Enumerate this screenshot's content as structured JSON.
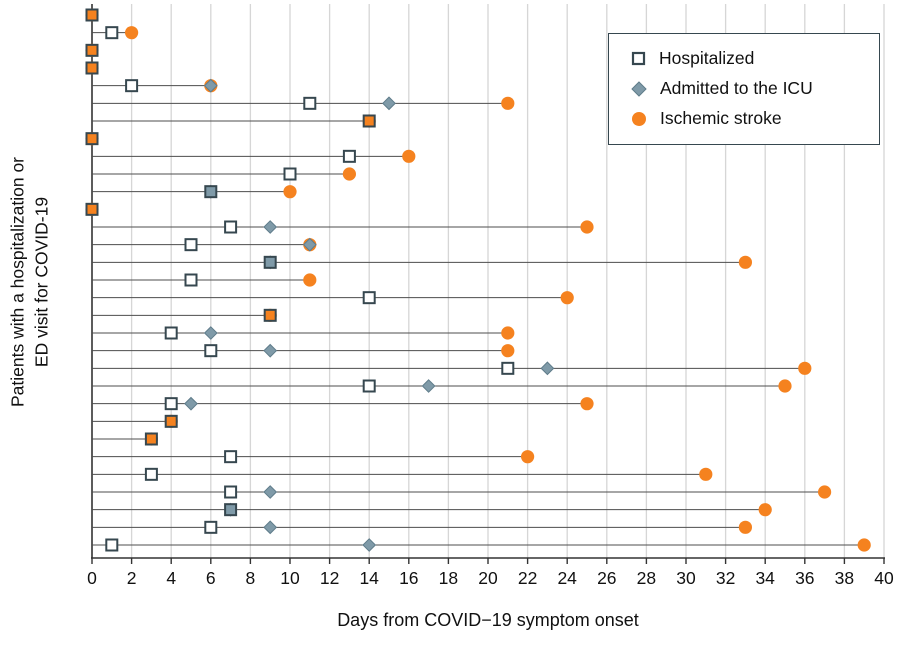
{
  "chart_data": {
    "type": "scatter",
    "subtype": "patient-event-timeline",
    "xlabel": "Days from COVID−19 symptom onset",
    "ylabel_line1": "Patients with a hospitalization or",
    "ylabel_line2": "ED visit for  COVID-19",
    "x_axis": {
      "min": 0,
      "max": 40
    },
    "x_ticks": [
      0,
      2,
      4,
      6,
      8,
      10,
      12,
      14,
      16,
      18,
      20,
      22,
      24,
      26,
      28,
      30,
      32,
      34,
      36,
      38,
      40
    ],
    "grid": "vertical-on",
    "legend_position": "top-right",
    "legend": [
      {
        "label": "Hospitalized",
        "marker": "open-square"
      },
      {
        "label": "Admitted to the ICU",
        "marker": "diamond"
      },
      {
        "label": "Ischemic stroke",
        "marker": "circle"
      }
    ],
    "colors": {
      "square_stroke": "#36474f",
      "icu_fill": "#7f9aa8",
      "icu_stroke": "#5f7c8a",
      "stroke_fill": "#f5821f",
      "line": "#4d4d4d",
      "grid": "#d6d6d6",
      "axis": "#333333",
      "text": "#111111"
    },
    "patients": [
      {
        "hospitalized": 0,
        "stroke": 0
      },
      {
        "hospitalized": 1,
        "stroke": 2
      },
      {
        "hospitalized": 0,
        "stroke": 0
      },
      {
        "hospitalized": 0,
        "stroke": 0
      },
      {
        "hospitalized": 2,
        "icu": 6,
        "stroke": 6
      },
      {
        "hospitalized": 11,
        "icu": 15,
        "stroke": 21
      },
      {
        "hospitalized": 14,
        "stroke": 14
      },
      {
        "hospitalized": 0,
        "stroke": 0
      },
      {
        "hospitalized": 13,
        "stroke": 16
      },
      {
        "hospitalized": 10,
        "stroke": 13
      },
      {
        "hospitalized": 6,
        "icu": 6,
        "stroke": 10
      },
      {
        "hospitalized": 0,
        "stroke": 0
      },
      {
        "hospitalized": 7,
        "icu": 9,
        "stroke": 25
      },
      {
        "hospitalized": 5,
        "icu": 11,
        "stroke": 11
      },
      {
        "hospitalized": 9,
        "icu": 9,
        "stroke": 33
      },
      {
        "hospitalized": 5,
        "stroke": 11
      },
      {
        "hospitalized": 14,
        "stroke": 24
      },
      {
        "hospitalized": 9,
        "stroke": 9
      },
      {
        "hospitalized": 4,
        "icu": 6,
        "stroke": 21
      },
      {
        "hospitalized": 6,
        "icu": 9,
        "stroke": 21
      },
      {
        "hospitalized": 21,
        "icu": 23,
        "stroke": 36
      },
      {
        "hospitalized": 14,
        "icu": 17,
        "stroke": 35
      },
      {
        "hospitalized": 4,
        "icu": 5,
        "stroke": 25
      },
      {
        "hospitalized": 4,
        "stroke": 4
      },
      {
        "hospitalized": 3,
        "stroke": 3
      },
      {
        "hospitalized": 7,
        "stroke": 22
      },
      {
        "hospitalized": 3,
        "stroke": 31
      },
      {
        "hospitalized": 7,
        "icu": 9,
        "stroke": 37
      },
      {
        "hospitalized": 7,
        "icu": 7,
        "stroke": 34
      },
      {
        "hospitalized": 6,
        "icu": 9,
        "stroke": 33
      },
      {
        "hospitalized": 1,
        "icu": 14,
        "stroke": 39
      }
    ]
  }
}
